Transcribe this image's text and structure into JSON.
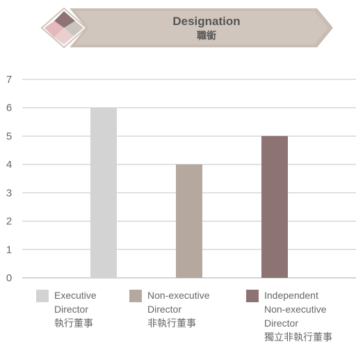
{
  "header": {
    "title": "Designation",
    "subtitle": "職銜"
  },
  "chart_data": {
    "type": "bar",
    "categories": [
      "Executive Director 執行董事",
      "Non-executive Director 非執行董事",
      "Independent Non-executive Director 獨立非執行董事"
    ],
    "values": [
      6,
      4,
      5
    ],
    "colors": [
      "#d3d3d4",
      "#b5a89e",
      "#8d7373"
    ],
    "ylim": [
      0,
      7
    ],
    "yticks": [
      "0",
      "1",
      "2",
      "3",
      "4",
      "5",
      "6",
      "7"
    ],
    "grid": true,
    "legend_position": "bottom"
  },
  "legend": [
    {
      "lines": [
        "Executive",
        "Director",
        "執行董事"
      ],
      "color": "#d3d3d4"
    },
    {
      "lines": [
        "Non-executive",
        "Director",
        "非執行董事"
      ],
      "color": "#b5a89e"
    },
    {
      "lines": [
        "Independent",
        "Non-executive",
        "Director",
        "獨立非執行董事"
      ],
      "color": "#8d7373"
    }
  ]
}
